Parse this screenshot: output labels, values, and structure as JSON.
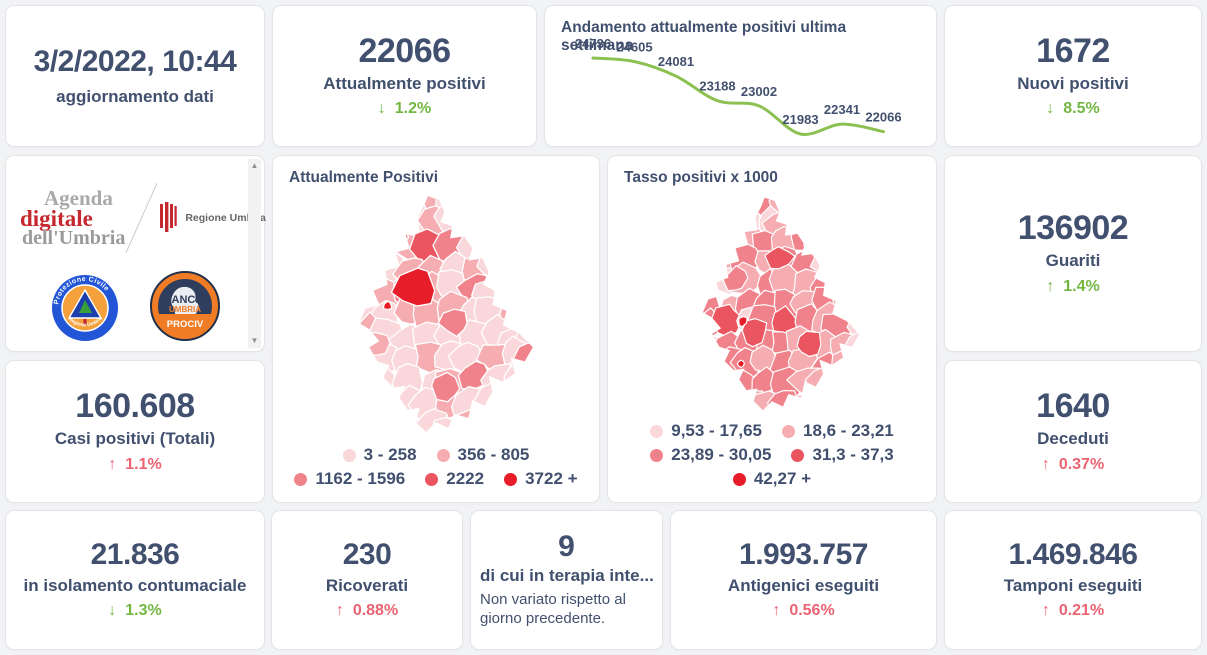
{
  "theme": {
    "background": "#f2f3f5",
    "card_background": "#ffffff",
    "card_border": "#e4e5e8",
    "text_dark": "#41506e",
    "green": "#74b642",
    "red": "#ea6372",
    "chart_line": "#8cc152",
    "map_palette": [
      "#f9d7da",
      "#f5adb2",
      "#f0828b",
      "#ea5560",
      "#e71d29"
    ]
  },
  "icons": {
    "arrow_up": "↑",
    "arrow_down": "↓",
    "scroll_up": "▲",
    "scroll_down": "▼"
  },
  "cards": {
    "update": {
      "datetime": "3/2/2022, 10:44",
      "label": "aggiornamento dati"
    },
    "attualmente_positivi": {
      "value": "22066",
      "label": "Attualmente positivi",
      "delta": "1.2%",
      "arrow": "down",
      "delta_color": "green"
    },
    "trend_chart": {
      "title": "Andamento attualmente positivi ultima settimana"
    },
    "nuovi_positivi": {
      "value": "1672",
      "label": "Nuovi positivi",
      "delta": "8.5%",
      "arrow": "down",
      "delta_color": "green"
    },
    "logos": {
      "agenda": {
        "line1": "Agenda",
        "line2": "digitale",
        "line3": "dell'Umbria"
      },
      "regione_label": "Regione Umbria",
      "protezione_top": "Protezione Civile",
      "protezione_bottom": "Regione Umbria",
      "anci": {
        "line1": "ANCI",
        "line2": "UMBRIA",
        "line3": "PROCIV"
      }
    },
    "map_attualmente": {
      "title": "Attualmente Positivi",
      "legend_rows": [
        [
          {
            "label": "3 - 258",
            "color": "#f9d7da"
          },
          {
            "label": "356 - 805",
            "color": "#f5adb2"
          }
        ],
        [
          {
            "label": "1162 - 1596",
            "color": "#f0828b"
          },
          {
            "label": "2222",
            "color": "#ea5560"
          },
          {
            "label": "3722 +",
            "color": "#e71d29"
          }
        ]
      ]
    },
    "map_tasso": {
      "title": "Tasso positivi x 1000",
      "legend_rows": [
        [
          {
            "label": "9,53 - 17,65",
            "color": "#f9d7da"
          },
          {
            "label": "18,6 - 23,21",
            "color": "#f5adb2"
          }
        ],
        [
          {
            "label": "23,89 - 30,05",
            "color": "#f0828b"
          },
          {
            "label": "31,3 - 37,3",
            "color": "#ea5560"
          }
        ],
        [
          {
            "label": "42,27 +",
            "color": "#e71d29"
          }
        ]
      ]
    },
    "guariti": {
      "value": "136902",
      "label": "Guariti",
      "delta": "1.4%",
      "arrow": "up",
      "delta_color": "green"
    },
    "casi_totali": {
      "value": "160.608",
      "label": "Casi positivi (Totali)",
      "delta": "1.1%",
      "arrow": "up",
      "delta_color": "red"
    },
    "deceduti": {
      "value": "1640",
      "label": "Deceduti",
      "delta": "0.37%",
      "arrow": "up",
      "delta_color": "red"
    },
    "isolamento": {
      "value": "21.836",
      "label": "in isolamento contumaciale",
      "delta": "1.3%",
      "arrow": "down",
      "delta_color": "green"
    },
    "ricoverati": {
      "value": "230",
      "label": "Ricoverati",
      "delta": "0.88%",
      "arrow": "up",
      "delta_color": "red"
    },
    "terapia": {
      "value": "9",
      "label": "di cui in terapia inte...",
      "note": "Non variato rispetto al giorno precedente."
    },
    "antigenici": {
      "value": "1.993.757",
      "label": "Antigenici eseguiti",
      "delta": "0.56%",
      "arrow": "up",
      "delta_color": "red"
    },
    "tamponi": {
      "value": "1.469.846",
      "label": "Tamponi eseguiti",
      "delta": "0.21%",
      "arrow": "up",
      "delta_color": "red"
    }
  },
  "chart_data": {
    "type": "line",
    "title": "Andamento attualmente positivi ultima settimana",
    "x": [
      1,
      2,
      3,
      4,
      5,
      6,
      7,
      8
    ],
    "values": [
      24736,
      24605,
      24081,
      23188,
      23002,
      21983,
      22341,
      22066
    ],
    "series_name": "Attualmente positivi",
    "line_color": "#8cc152",
    "data_labels": true,
    "axes_hidden": true,
    "legend_position": "none"
  }
}
